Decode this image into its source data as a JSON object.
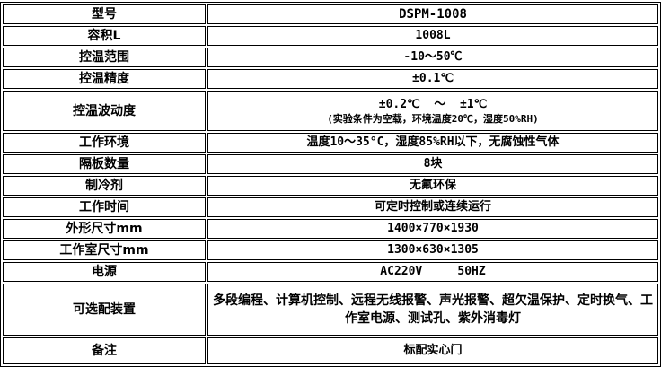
{
  "rows": [
    {
      "label": "型号",
      "value": "DSPM-1008"
    },
    {
      "label": "容积L",
      "value": "1008L"
    },
    {
      "label": "控温范围",
      "value": "-10～50℃"
    },
    {
      "label": "控温精度",
      "value": "±0.1℃"
    },
    {
      "label": "控温波动度",
      "value": "±0.2℃  ～  ±1℃",
      "note": "(实验条件为空载，环境温度20℃，湿度50%RH)"
    },
    {
      "label": "工作环境",
      "value": "温度10～35°C，湿度85%RH以下，无腐蚀性气体"
    },
    {
      "label": "隔板数量",
      "value": "8块"
    },
    {
      "label": "制冷剂",
      "value": "无氟环保"
    },
    {
      "label": "工作时间",
      "value": "可定时控制或连续运行"
    },
    {
      "label": "外形尺寸mm",
      "value": "1400×770×1930"
    },
    {
      "label": "工作室尺寸mm",
      "value": "1300×630×1305"
    },
    {
      "label": "电源",
      "value": "AC220V     50HZ"
    },
    {
      "label": "可选配装置",
      "value": "多段编程、计算机控制、远程无线报警、声光报警、超欠温保护、定时换气、工作室电源、测试孔、紫外消毒灯"
    },
    {
      "label": "备注",
      "value": "标配实心门"
    }
  ]
}
